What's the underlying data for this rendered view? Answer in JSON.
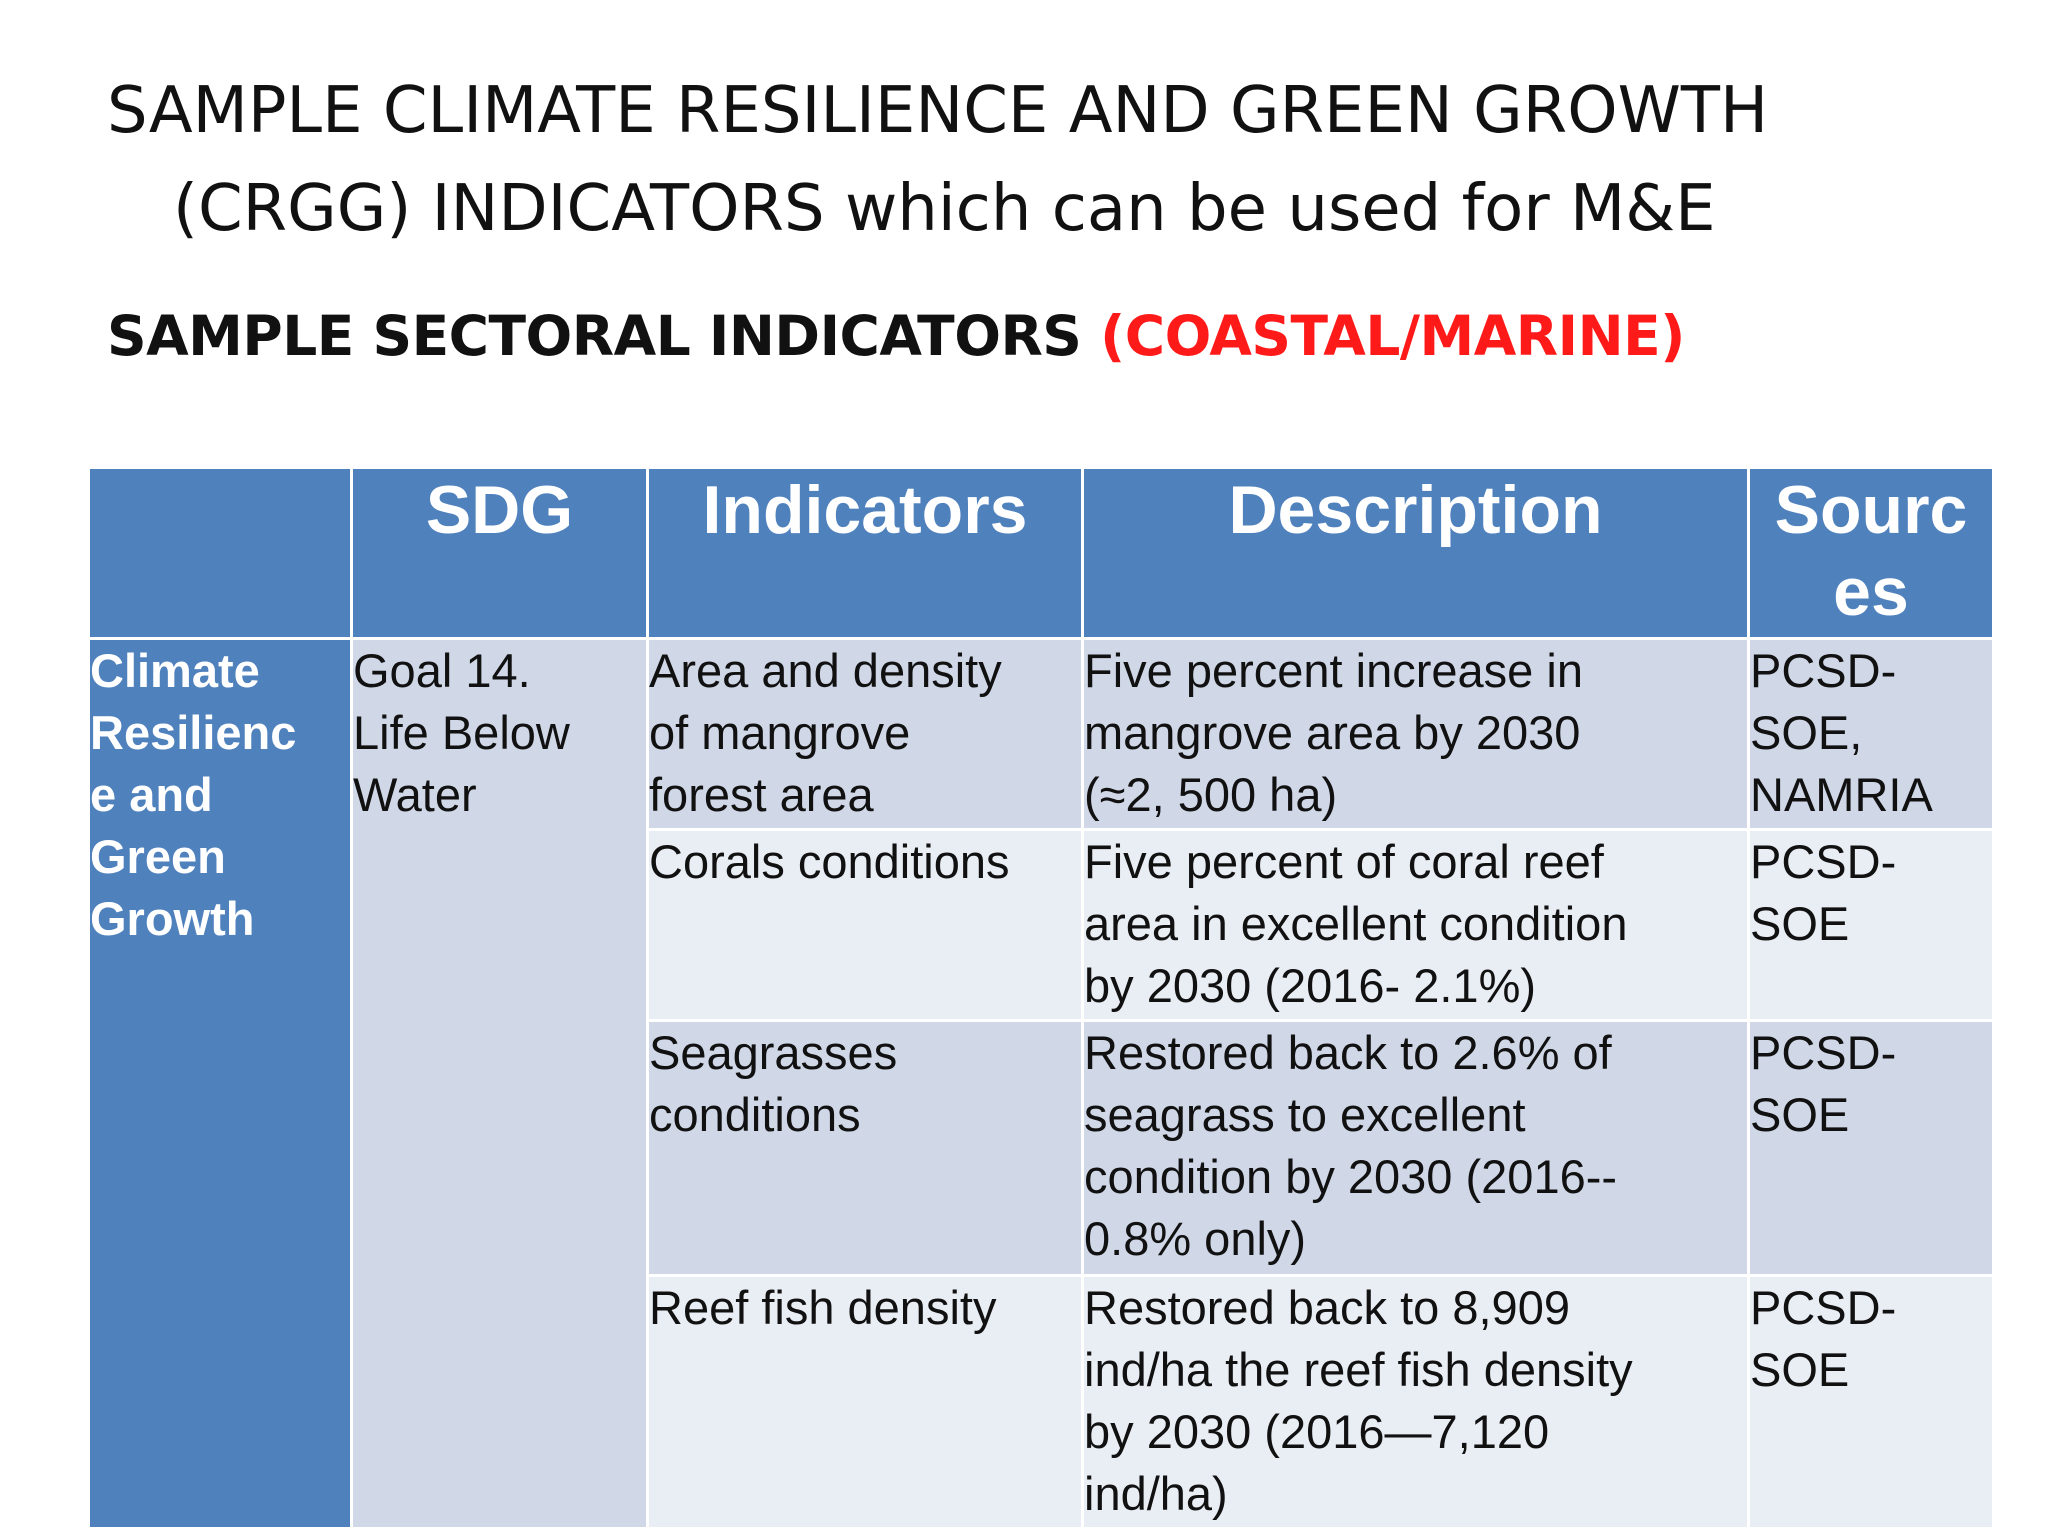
{
  "title": {
    "line1": "SAMPLE CLIMATE RESILIENCE AND GREEN GROWTH",
    "line2": "(CRGG) INDICATORS which can be used for M&E"
  },
  "subtitle": {
    "prefix": "SAMPLE SECTORAL INDICATORS ",
    "highlight": "(COASTAL/MARINE)",
    "highlight_color": "#ff1a1a"
  },
  "table": {
    "header_color": "#4f81bd",
    "headers": {
      "col0": "",
      "sdg": "SDG",
      "indicators": "Indicators",
      "description": "Description",
      "sources_line1": "Sourc",
      "sources_line2": "es"
    },
    "category": [
      "Climate",
      "Resilienc",
      "e and",
      "Green",
      "Growth"
    ],
    "sdg": [
      "Goal 14.",
      "Life Below",
      "Water"
    ],
    "rows": [
      {
        "indicator": [
          "Area and density",
          "of mangrove",
          "forest area"
        ],
        "description": [
          "Five percent increase in",
          "mangrove area by 2030",
          "(≈2, 500 ha)"
        ],
        "source": [
          "PCSD-",
          "SOE,",
          "NAMRIA"
        ]
      },
      {
        "indicator": [
          "Corals conditions"
        ],
        "description": [
          "Five percent of coral reef",
          "area in excellent condition",
          "by 2030 (2016- 2.1%)"
        ],
        "source": [
          "PCSD-",
          "SOE"
        ]
      },
      {
        "indicator": [
          "Seagrasses",
          "conditions"
        ],
        "description": [
          "Restored back to 2.6% of",
          "seagrass to excellent",
          "condition by 2030 (2016--",
          "0.8% only)"
        ],
        "source": [
          "PCSD-",
          "SOE"
        ]
      },
      {
        "indicator": [
          "Reef fish density"
        ],
        "description": [
          "Restored back to 8,909",
          "ind/ha the reef fish density",
          "by 2030 (2016—7,120",
          "ind/ha)"
        ],
        "source": [
          "PCSD-",
          "SOE"
        ]
      }
    ]
  }
}
